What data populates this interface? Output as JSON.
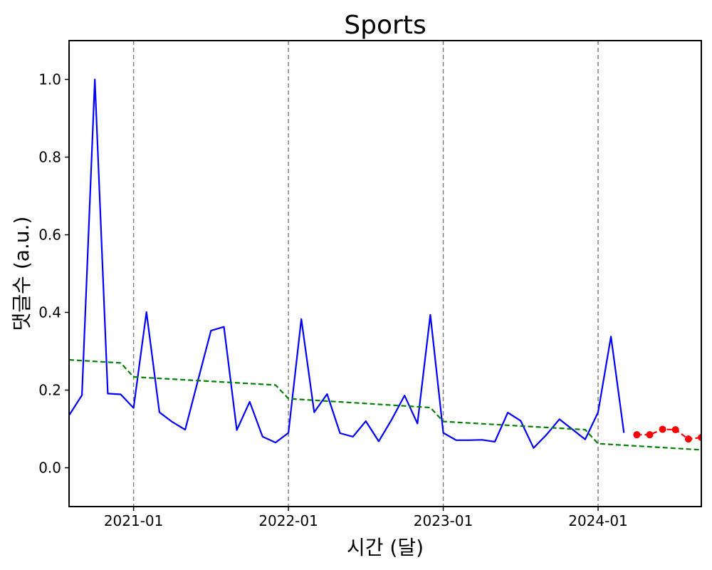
{
  "chart_data": {
    "type": "line",
    "title": "Sports",
    "xlabel": "시간 (달)",
    "ylabel": "댓글수 (a.u.)",
    "xlim": [
      "2020-08-01",
      "2024-09-01"
    ],
    "ylim": [
      -0.1,
      1.1
    ],
    "x_ticks": [
      "2021-01",
      "2022-01",
      "2023-01",
      "2024-01"
    ],
    "y_ticks": [
      "0.0",
      "0.2",
      "0.4",
      "0.6",
      "0.8",
      "1.0"
    ],
    "grid": false,
    "year_dividers": [
      "2021-01",
      "2022-01",
      "2023-01",
      "2024-01"
    ],
    "series": [
      {
        "color": "#0000ff",
        "style": "solid",
        "x": [
          "2020-08",
          "2020-09",
          "2020-10",
          "2020-11",
          "2020-12",
          "2021-01",
          "2021-02",
          "2021-03",
          "2021-04",
          "2021-05",
          "2021-06",
          "2021-07",
          "2021-08",
          "2021-09",
          "2021-10",
          "2021-11",
          "2021-12",
          "2022-01",
          "2022-02",
          "2022-03",
          "2022-04",
          "2022-05",
          "2022-06",
          "2022-07",
          "2022-08",
          "2022-09",
          "2022-10",
          "2022-11",
          "2022-12",
          "2023-01",
          "2023-02",
          "2023-03",
          "2023-04",
          "2023-05",
          "2023-06",
          "2023-07",
          "2023-08",
          "2023-09",
          "2023-10",
          "2023-11",
          "2023-12",
          "2024-01",
          "2024-02",
          "2024-03"
        ],
        "y": [
          0.135,
          0.187,
          1.0,
          0.191,
          0.189,
          0.154,
          0.401,
          0.143,
          0.118,
          0.098,
          0.226,
          0.353,
          0.363,
          0.097,
          0.17,
          0.08,
          0.065,
          0.09,
          0.383,
          0.143,
          0.19,
          0.089,
          0.08,
          0.12,
          0.068,
          0.124,
          0.186,
          0.114,
          0.394,
          0.09,
          0.071,
          0.071,
          0.072,
          0.067,
          0.142,
          0.121,
          0.051,
          0.085,
          0.125,
          0.099,
          0.073,
          0.143,
          0.338,
          0.09
        ]
      },
      {
        "color": "#008000",
        "style": "dashed",
        "x": [
          "2020-08",
          "2020-12",
          "2021-01",
          "2021-12",
          "2022-01",
          "2022-12",
          "2023-01",
          "2023-12",
          "2024-01",
          "2024-09"
        ],
        "y": [
          0.278,
          0.27,
          0.234,
          0.213,
          0.178,
          0.155,
          0.119,
          0.098,
          0.062,
          0.046
        ]
      },
      {
        "color": "#ff0000",
        "style": "dashed",
        "markers": true,
        "x": [
          "2024-04",
          "2024-05",
          "2024-06",
          "2024-07",
          "2024-08",
          "2024-09"
        ],
        "y": [
          0.085,
          0.085,
          0.099,
          0.098,
          0.074,
          0.078
        ]
      }
    ]
  }
}
